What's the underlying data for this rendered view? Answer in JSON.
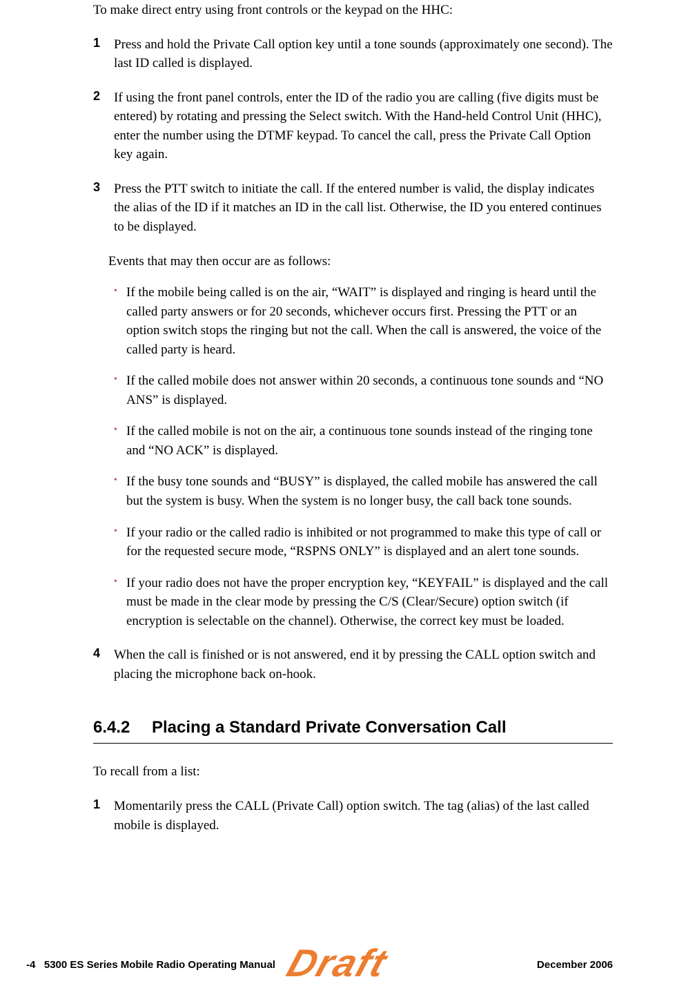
{
  "intro": "To make direct entry using front controls or the keypad on the HHC:",
  "steps": [
    {
      "num": "1",
      "text": "Press and hold the Private Call option key until a tone sounds (approximately one second). The last ID called is displayed."
    },
    {
      "num": "2",
      "text": "If using the front panel controls, enter the ID of the radio you are calling (five digits must be entered) by rotating and pressing the Select switch. With the Hand-held Control Unit (HHC), enter the number using the DTMF keypad. To cancel the call, press the Private Call Option key again."
    },
    {
      "num": "3",
      "text": "Press the PTT switch to initiate the call. If the entered number is valid, the display indicates the alias of the ID if it matches an ID in the call list. Otherwise, the ID you entered continues to be displayed."
    }
  ],
  "events_intro": "Events that may then occur are as follows:",
  "bullets": [
    "If the mobile being called is on the air, “WAIT” is displayed and ringing is heard until the called party answers or for 20 seconds, whichever occurs first. Pressing the PTT or an option switch stops the ringing but not the call. When the call is answered, the voice of the called party is heard.",
    "If the called mobile does not answer within 20 seconds, a continuous tone sounds and “NO ANS” is displayed.",
    "If the called mobile is not on the air, a continuous tone sounds instead of the ringing tone and “NO ACK” is displayed.",
    "If the busy tone sounds and “BUSY” is displayed, the called mobile has answered the call but the system is busy. When the system is no longer busy, the call back tone sounds.",
    "If your radio or the called radio is inhibited or not programmed to make this type of call or for the requested secure mode, “RSPNS ONLY” is displayed and an alert tone sounds.",
    "If your radio does not have the proper encryption key, “KEYFAIL” is displayed and the call must be made in the clear mode by pressing the C/S (Clear/Secure) option switch (if encryption is selectable on the channel). Otherwise, the correct key must be loaded."
  ],
  "step4": {
    "num": "4",
    "text": "When the call is finished or is not answered, end it by pressing the CALL option switch and placing the microphone back on-hook."
  },
  "section": {
    "number": "6.4.2",
    "title": "Placing a Standard Private Conversation Call"
  },
  "section_intro": "To recall from a list:",
  "section_steps": [
    {
      "num": "1",
      "text": "Momentarily press the CALL (Private Call) option switch. The tag (alias) of the last called mobile is displayed."
    }
  ],
  "footer": {
    "left_page": "-4",
    "left_title": "5300 ES Series Mobile Radio Operating Manual",
    "right": "December 2006"
  },
  "watermark": "Draft",
  "colors": {
    "bullet": "#c0504d",
    "watermark": "#ed7d31"
  }
}
